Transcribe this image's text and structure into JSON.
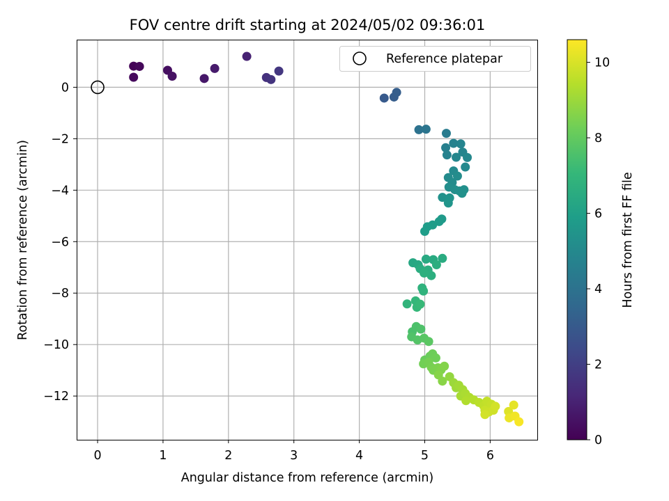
{
  "chart_data": {
    "type": "scatter",
    "title": "FOV centre drift starting at 2024/05/02 09:36:01",
    "xlabel": "Angular distance from reference (arcmin)",
    "ylabel": "Rotation from reference (arcmin)",
    "colorbar_label": "Hours from first FF file",
    "colormap": "viridis",
    "xlim": [
      -0.32,
      6.72
    ],
    "ylim": [
      -13.7,
      1.85
    ],
    "xticks": [
      "0",
      "1",
      "2",
      "3",
      "4",
      "5",
      "6"
    ],
    "yticks": [
      "0",
      "−2",
      "−4",
      "−6",
      "−8",
      "−10",
      "−12"
    ],
    "colorbar_range": [
      0,
      10.6
    ],
    "colorbar_ticks": [
      "0",
      "2",
      "4",
      "6",
      "8",
      "10"
    ],
    "grid": true,
    "legend_position": "top-right",
    "legend_label": "Reference platepar",
    "reference_point": [
      0,
      0
    ],
    "series": [
      {
        "points": [
          [
            0.55,
            0.82,
            0.1
          ],
          [
            0.64,
            0.81,
            0.2
          ],
          [
            0.55,
            0.39,
            0.25
          ],
          [
            1.07,
            0.66,
            0.4
          ],
          [
            1.14,
            0.43,
            0.5
          ],
          [
            1.63,
            0.34,
            0.7
          ],
          [
            1.79,
            0.73,
            0.8
          ],
          [
            2.28,
            1.2,
            1.0
          ],
          [
            2.58,
            0.38,
            1.5
          ],
          [
            2.65,
            0.3,
            1.6
          ],
          [
            2.77,
            0.63,
            1.7
          ],
          [
            4.38,
            -0.42,
            3.0
          ],
          [
            4.53,
            -0.38,
            3.1
          ],
          [
            4.57,
            -0.2,
            3.15
          ],
          [
            4.91,
            -1.65,
            4.0
          ],
          [
            5.02,
            -1.63,
            4.1
          ],
          [
            5.33,
            -1.79,
            4.4
          ],
          [
            5.32,
            -2.35,
            4.6
          ],
          [
            5.34,
            -2.63,
            4.7
          ],
          [
            5.44,
            -2.18,
            4.7
          ],
          [
            5.55,
            -2.2,
            4.8
          ],
          [
            5.58,
            -2.52,
            4.85
          ],
          [
            5.48,
            -2.72,
            4.9
          ],
          [
            5.65,
            -2.73,
            4.95
          ],
          [
            5.62,
            -3.1,
            5.0
          ],
          [
            5.44,
            -3.25,
            5.05
          ],
          [
            5.36,
            -3.51,
            5.1
          ],
          [
            5.5,
            -3.45,
            5.12
          ],
          [
            5.42,
            -3.7,
            5.15
          ],
          [
            5.37,
            -3.88,
            5.2
          ],
          [
            5.46,
            -3.98,
            5.25
          ],
          [
            5.53,
            -4.03,
            5.3
          ],
          [
            5.6,
            -3.98,
            5.3
          ],
          [
            5.57,
            -4.12,
            5.35
          ],
          [
            5.27,
            -4.28,
            5.4
          ],
          [
            5.38,
            -4.3,
            5.45
          ],
          [
            5.36,
            -4.5,
            5.5
          ],
          [
            5.26,
            -5.12,
            5.7
          ],
          [
            5.22,
            -5.22,
            5.75
          ],
          [
            5.12,
            -5.35,
            5.8
          ],
          [
            5.04,
            -5.42,
            5.85
          ],
          [
            5.0,
            -5.6,
            5.9
          ],
          [
            4.82,
            -6.82,
            6.3
          ],
          [
            4.9,
            -6.9,
            6.35
          ],
          [
            5.02,
            -6.68,
            6.4
          ],
          [
            5.13,
            -6.7,
            6.45
          ],
          [
            5.27,
            -6.65,
            6.5
          ],
          [
            4.93,
            -7.05,
            6.55
          ],
          [
            5.05,
            -7.1,
            6.6
          ],
          [
            5.18,
            -6.9,
            6.6
          ],
          [
            5.1,
            -7.32,
            6.65
          ],
          [
            4.99,
            -7.22,
            6.7
          ],
          [
            4.96,
            -7.8,
            6.8
          ],
          [
            4.98,
            -7.92,
            6.85
          ],
          [
            4.73,
            -8.42,
            6.9
          ],
          [
            4.86,
            -8.3,
            7.0
          ],
          [
            4.88,
            -8.55,
            7.05
          ],
          [
            4.93,
            -8.43,
            7.1
          ],
          [
            4.81,
            -9.5,
            7.5
          ],
          [
            4.87,
            -9.3,
            7.55
          ],
          [
            4.94,
            -9.4,
            7.6
          ],
          [
            4.8,
            -9.7,
            7.65
          ],
          [
            4.89,
            -9.82,
            7.7
          ],
          [
            4.99,
            -9.75,
            7.8
          ],
          [
            5.06,
            -9.88,
            7.85
          ],
          [
            5.0,
            -10.6,
            8.1
          ],
          [
            5.08,
            -10.45,
            8.15
          ],
          [
            5.12,
            -10.36,
            8.2
          ],
          [
            5.17,
            -10.52,
            8.25
          ],
          [
            4.98,
            -10.75,
            8.3
          ],
          [
            5.06,
            -10.68,
            8.35
          ],
          [
            5.1,
            -10.88,
            8.4
          ],
          [
            5.13,
            -11.0,
            8.45
          ],
          [
            5.2,
            -10.9,
            8.5
          ],
          [
            5.25,
            -10.98,
            8.55
          ],
          [
            5.3,
            -10.84,
            8.6
          ],
          [
            5.21,
            -11.18,
            8.65
          ],
          [
            5.27,
            -11.42,
            8.7
          ],
          [
            5.38,
            -11.25,
            8.85
          ],
          [
            5.44,
            -11.48,
            9.0
          ],
          [
            5.48,
            -11.68,
            9.05
          ],
          [
            5.52,
            -11.58,
            9.1
          ],
          [
            5.58,
            -11.75,
            9.15
          ],
          [
            5.55,
            -12.0,
            9.2
          ],
          [
            5.62,
            -11.9,
            9.25
          ],
          [
            5.68,
            -12.05,
            9.3
          ],
          [
            5.63,
            -12.18,
            9.35
          ],
          [
            5.75,
            -12.15,
            9.4
          ],
          [
            5.83,
            -12.25,
            9.5
          ],
          [
            5.9,
            -12.38,
            9.6
          ],
          [
            5.95,
            -12.2,
            9.65
          ],
          [
            6.02,
            -12.32,
            9.7
          ],
          [
            5.92,
            -12.55,
            9.75
          ],
          [
            5.98,
            -12.62,
            9.8
          ],
          [
            6.05,
            -12.55,
            9.85
          ],
          [
            5.92,
            -12.72,
            9.9
          ],
          [
            6.08,
            -12.4,
            9.9
          ],
          [
            6.28,
            -12.6,
            10.1
          ],
          [
            6.36,
            -12.35,
            10.2
          ],
          [
            6.29,
            -12.85,
            10.3
          ],
          [
            6.38,
            -12.78,
            10.4
          ],
          [
            6.44,
            -13.0,
            10.5
          ]
        ]
      }
    ]
  }
}
